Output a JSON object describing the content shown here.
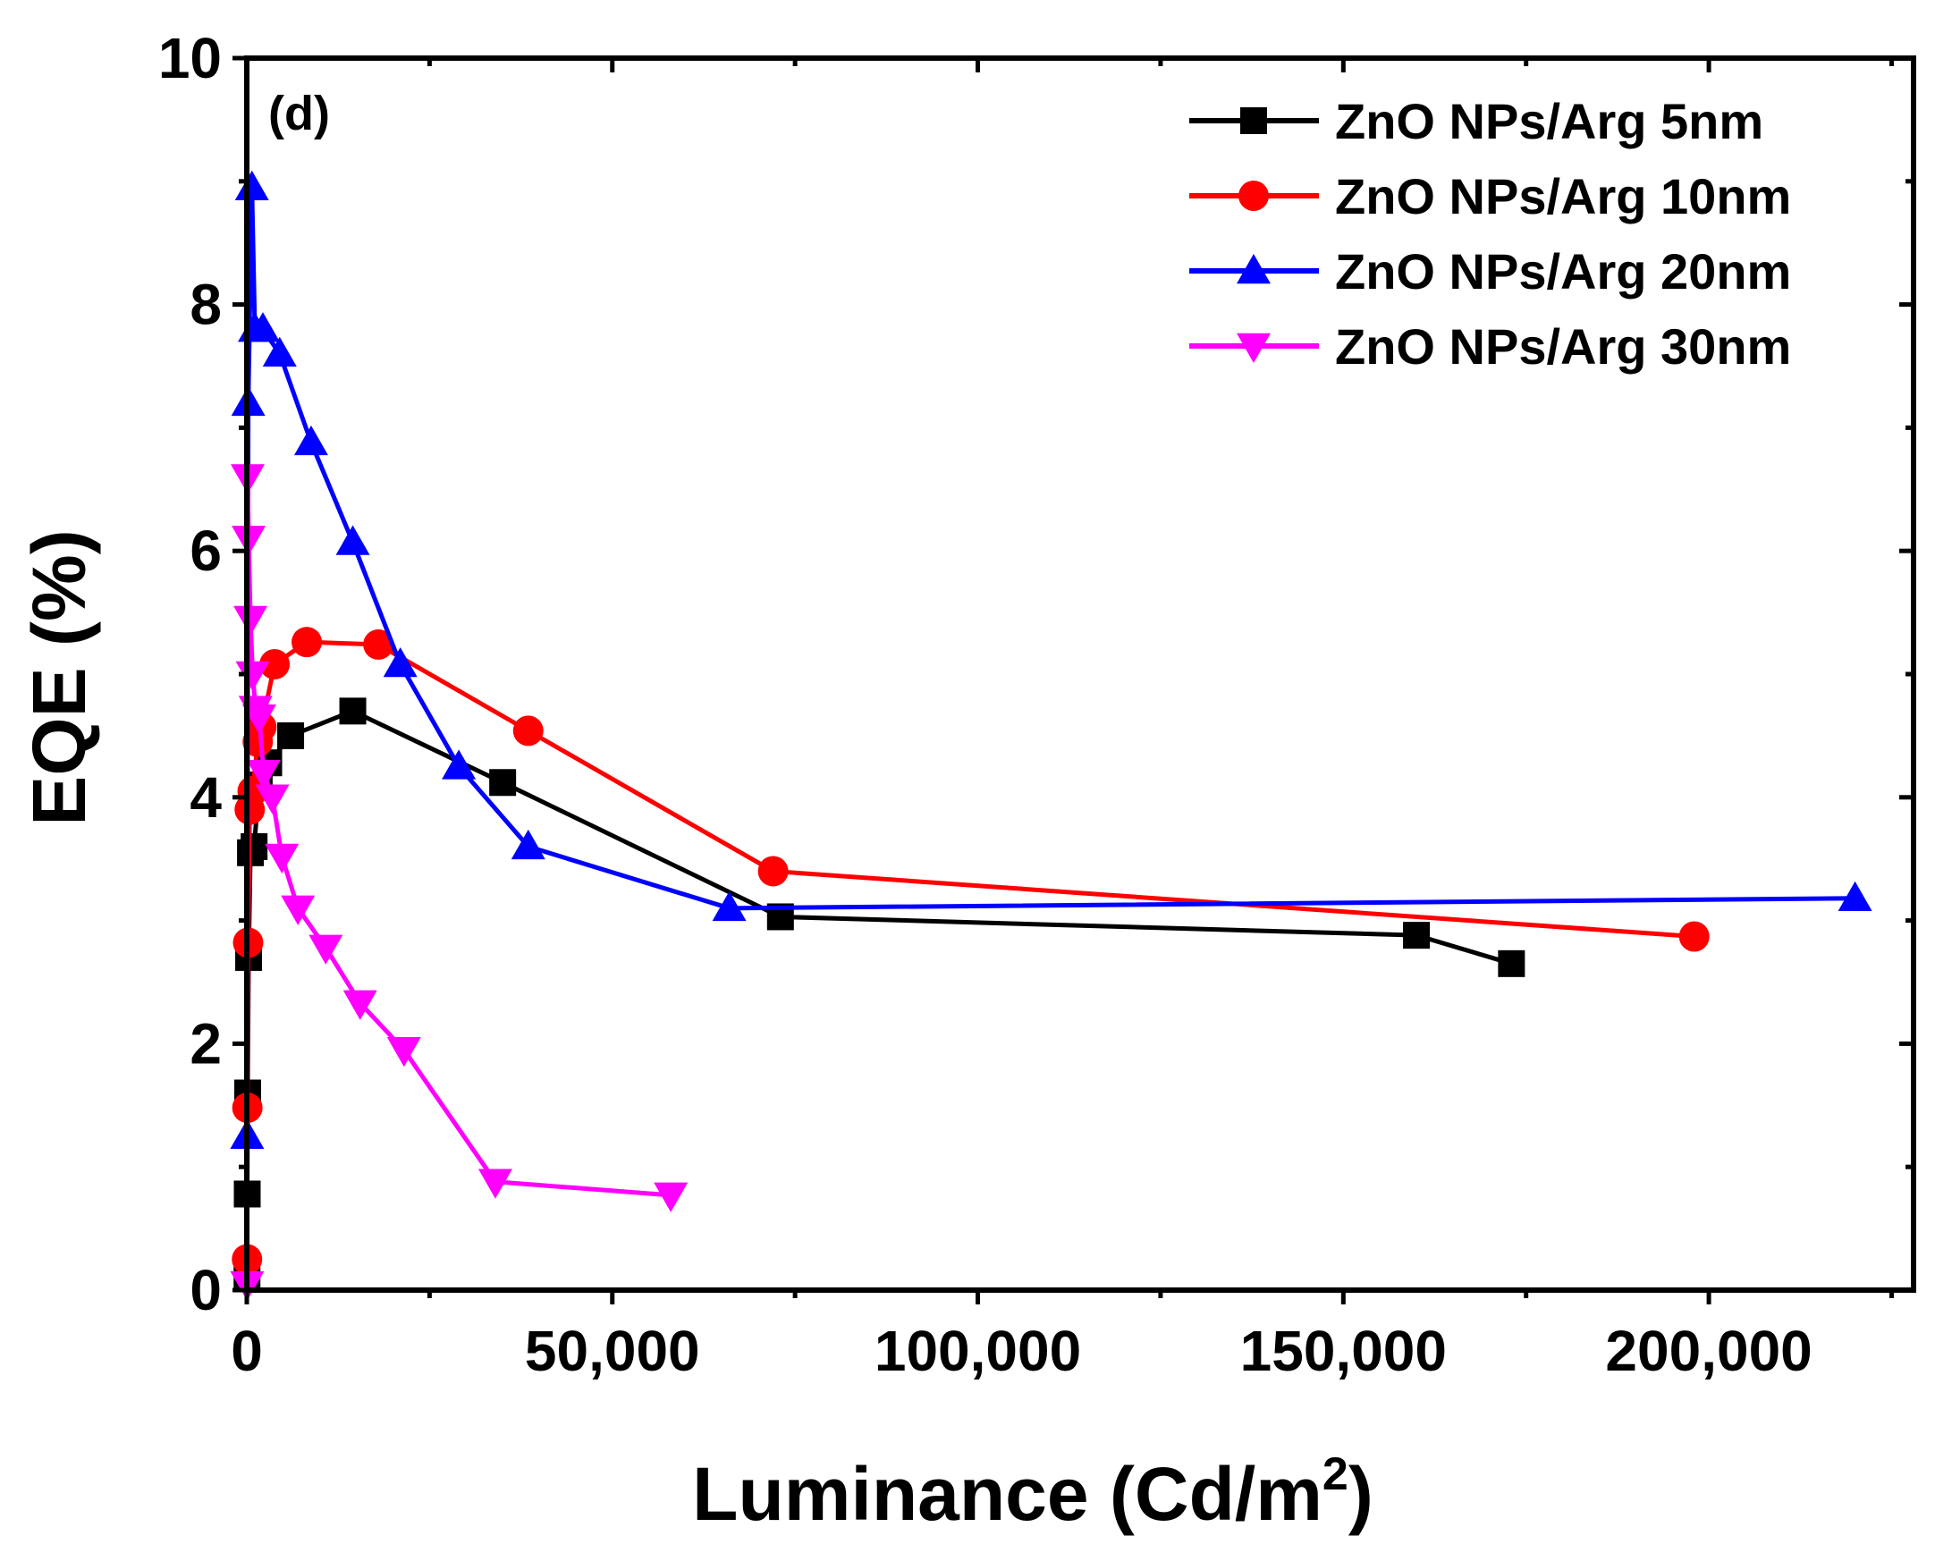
{
  "chart_data": {
    "type": "line",
    "panel_label": "(d)",
    "xlabel": "Luminance (Cd/m",
    "xlabel_sup": "2",
    "xlabel_close": ")",
    "ylabel": "EQE (%)",
    "xlim": [
      0,
      228000
    ],
    "ylim": [
      0,
      10
    ],
    "xticks": [
      0,
      50000,
      100000,
      150000,
      200000
    ],
    "xtick_labels": [
      "0",
      "50,000",
      "100,000",
      "150,000",
      "200,000"
    ],
    "xtick_minor": [
      25000,
      75000,
      125000,
      175000,
      225000
    ],
    "yticks": [
      0,
      2,
      4,
      6,
      8,
      10
    ],
    "ytick_labels": [
      "0",
      "2",
      "4",
      "6",
      "8",
      "10"
    ],
    "ytick_minor": [
      1,
      3,
      5,
      7,
      9
    ],
    "legend_position": "top-right",
    "series": [
      {
        "name": "ZnO NPs/Arg 5nm",
        "color": "#000000",
        "marker": "square",
        "x": [
          30,
          60,
          120,
          250,
          500,
          1000,
          1700,
          3000,
          6000,
          14500,
          35000,
          73000,
          160000,
          173000
        ],
        "y": [
          0.1,
          0.78,
          1.6,
          2.7,
          3.55,
          3.6,
          4.1,
          4.28,
          4.5,
          4.7,
          4.12,
          3.03,
          2.88,
          2.65
        ]
      },
      {
        "name": "ZnO NPs/Arg 10nm",
        "color": "#ff0000",
        "marker": "circle",
        "x": [
          30,
          80,
          180,
          400,
          800,
          1500,
          2000,
          3800,
          8200,
          18000,
          38500,
          72000,
          198000
        ],
        "y": [
          0.25,
          1.48,
          2.82,
          3.9,
          4.05,
          4.45,
          4.57,
          5.08,
          5.26,
          5.24,
          4.54,
          3.4,
          2.87
        ]
      },
      {
        "name": "ZnO NPs/Arg 20nm",
        "color": "#0000ff",
        "marker": "triangle-up",
        "x": [
          50,
          200,
          700,
          1100,
          2200,
          4500,
          8800,
          14500,
          21000,
          29000,
          38500,
          66000,
          220000
        ],
        "y": [
          1.25,
          7.2,
          8.95,
          7.8,
          7.8,
          7.6,
          6.88,
          6.07,
          5.08,
          4.25,
          3.6,
          3.1,
          3.18
        ]
      },
      {
        "name": "ZnO NPs/Arg 30nm",
        "color": "#ff00ff",
        "marker": "triangle-down",
        "x": [
          50,
          120,
          250,
          500,
          800,
          1200,
          1700,
          2300,
          3500,
          4800,
          7000,
          10800,
          15500,
          21500,
          34000,
          58000
        ],
        "y": [
          0.05,
          6.6,
          6.1,
          5.45,
          5.0,
          4.72,
          4.65,
          4.2,
          4.0,
          3.52,
          3.1,
          2.78,
          2.33,
          1.95,
          0.88,
          0.77
        ]
      }
    ]
  }
}
